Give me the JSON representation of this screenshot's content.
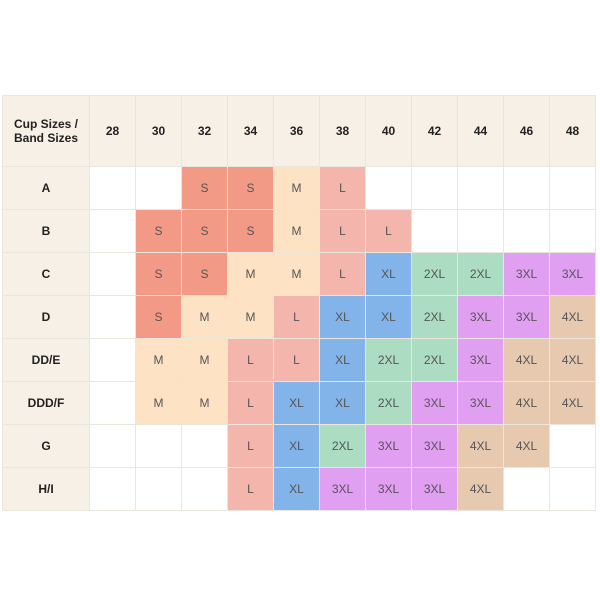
{
  "corner_label": "Cup Sizes / Band Sizes",
  "band_sizes": [
    "28",
    "30",
    "32",
    "34",
    "36",
    "38",
    "40",
    "42",
    "44",
    "46",
    "48"
  ],
  "rows": [
    {
      "cup": "A",
      "sizes": [
        "",
        "",
        "S",
        "S",
        "M",
        "L",
        "",
        "",
        "",
        "",
        ""
      ]
    },
    {
      "cup": "B",
      "sizes": [
        "",
        "S",
        "S",
        "S",
        "M",
        "L",
        "L",
        "",
        "",
        "",
        ""
      ]
    },
    {
      "cup": "C",
      "sizes": [
        "",
        "S",
        "S",
        "M",
        "M",
        "L",
        "XL",
        "2XL",
        "2XL",
        "3XL",
        "3XL"
      ]
    },
    {
      "cup": "D",
      "sizes": [
        "",
        "S",
        "M",
        "M",
        "L",
        "XL",
        "XL",
        "2XL",
        "3XL",
        "3XL",
        "4XL"
      ]
    },
    {
      "cup": "DD/E",
      "sizes": [
        "",
        "M",
        "M",
        "L",
        "L",
        "XL",
        "2XL",
        "2XL",
        "3XL",
        "4XL",
        "4XL"
      ]
    },
    {
      "cup": "DDD/F",
      "sizes": [
        "",
        "M",
        "M",
        "L",
        "XL",
        "XL",
        "2XL",
        "3XL",
        "3XL",
        "4XL",
        "4XL"
      ]
    },
    {
      "cup": "G",
      "sizes": [
        "",
        "",
        "",
        "L",
        "XL",
        "2XL",
        "3XL",
        "3XL",
        "4XL",
        "4XL",
        ""
      ]
    },
    {
      "cup": "H/I",
      "sizes": [
        "",
        "",
        "",
        "L",
        "XL",
        "3XL",
        "3XL",
        "3XL",
        "4XL",
        "",
        ""
      ]
    }
  ],
  "colors": {
    "header_bg": "#f7f0e6",
    "S": "#f29a85",
    "M": "#fde2c4",
    "L": "#f4b5ac",
    "XL": "#82b4ea",
    "2XL": "#acdcc2",
    "3XL": "#e19ff2",
    "4XL": "#e7c9b0"
  }
}
